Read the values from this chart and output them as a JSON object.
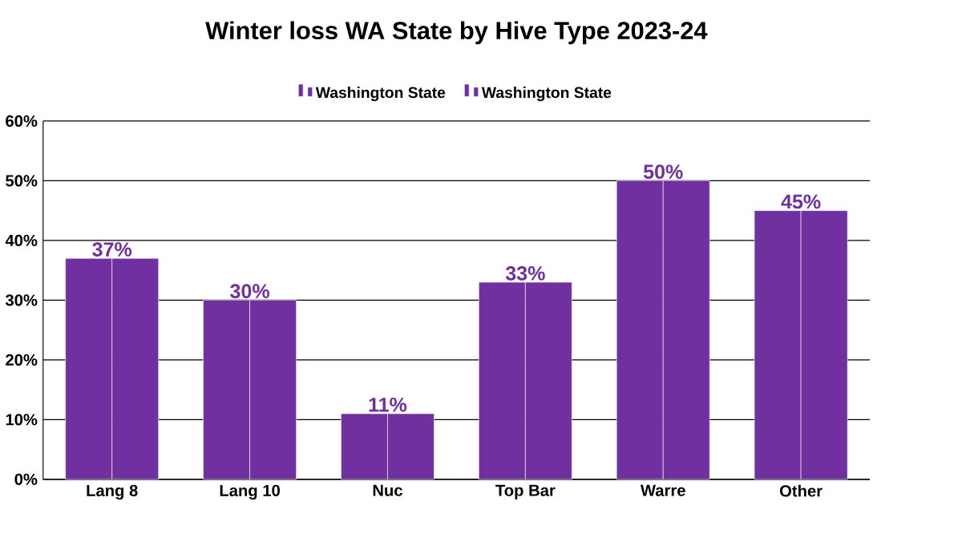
{
  "chart_data": {
    "type": "bar",
    "title": "Winter loss WA State by Hive Type 2023-24",
    "categories": [
      "Lang 8",
      "Lang 10",
      "Nuc",
      "Top Bar",
      "Warre",
      "Other"
    ],
    "series": [
      {
        "name": "Washington State",
        "color": "#7030a0",
        "values": [
          37,
          30,
          11,
          33,
          50,
          45
        ],
        "value_labels": [
          "37%",
          "30%",
          "11%",
          "33%",
          "50%",
          "45%"
        ]
      },
      {
        "name": "Washington State",
        "color": "#7030a0",
        "values": [
          37,
          30,
          11,
          33,
          50,
          45
        ]
      }
    ],
    "ylim": [
      0,
      60
    ],
    "yticks": [
      {
        "value": 0,
        "label": "0%"
      },
      {
        "value": 10,
        "label": "10%"
      },
      {
        "value": 20,
        "label": "20%"
      },
      {
        "value": 30,
        "label": "30%"
      },
      {
        "value": 40,
        "label": "40%"
      },
      {
        "value": 50,
        "label": "50%"
      },
      {
        "value": 60,
        "label": "60%"
      }
    ],
    "grid": "y",
    "legend": "top"
  }
}
